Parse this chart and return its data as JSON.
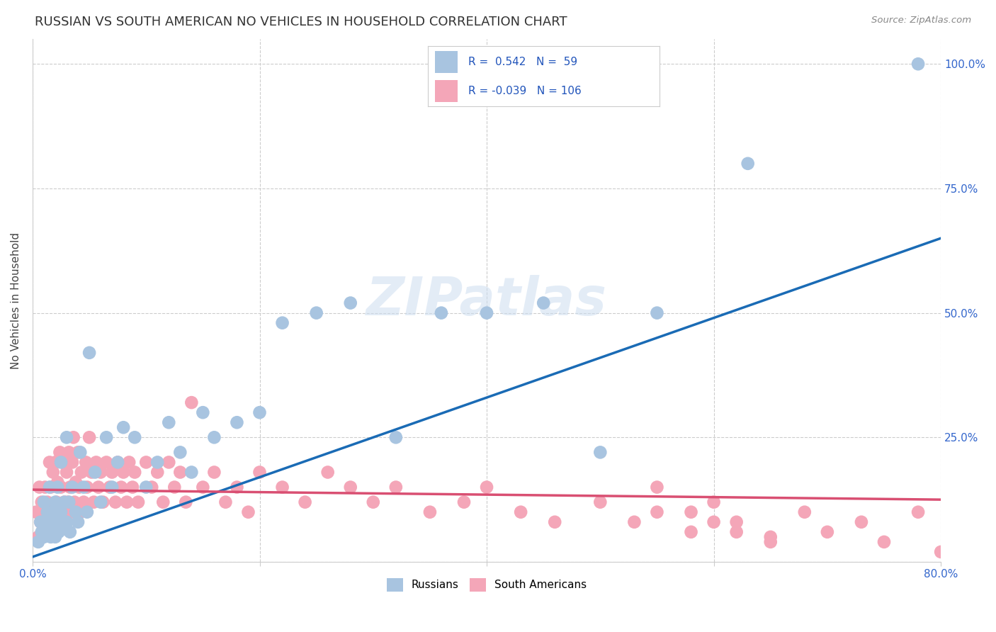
{
  "title": "RUSSIAN VS SOUTH AMERICAN NO VEHICLES IN HOUSEHOLD CORRELATION CHART",
  "source": "Source: ZipAtlas.com",
  "ylabel": "No Vehicles in Household",
  "xlim": [
    0.0,
    0.8
  ],
  "ylim": [
    0.0,
    1.05
  ],
  "xticks": [
    0.0,
    0.2,
    0.4,
    0.6,
    0.8
  ],
  "xticklabels": [
    "0.0%",
    "",
    "",
    "",
    "80.0%"
  ],
  "ytick_positions": [
    0.0,
    0.25,
    0.5,
    0.75,
    1.0
  ],
  "ytick_labels": [
    "",
    "25.0%",
    "50.0%",
    "75.0%",
    "100.0%"
  ],
  "russian_color": "#a8c4e0",
  "south_american_color": "#f4a6b8",
  "russian_line_color": "#1a6bb5",
  "south_american_line_color": "#d94f72",
  "background_color": "#ffffff",
  "grid_color": "#cccccc",
  "watermark": "ZIPatlas",
  "legend_r_russian": "0.542",
  "legend_n_russian": "59",
  "legend_r_sa": "-0.039",
  "legend_n_sa": "106",
  "title_fontsize": 13,
  "axis_fontsize": 11,
  "tick_fontsize": 11,
  "russian_line_x0": 0.0,
  "russian_line_y0": 0.01,
  "russian_line_x1": 0.8,
  "russian_line_y1": 0.65,
  "sa_line_x0": 0.0,
  "sa_line_y0": 0.145,
  "sa_line_x1": 0.8,
  "sa_line_y1": 0.125,
  "russian_x": [
    0.005,
    0.007,
    0.008,
    0.01,
    0.01,
    0.012,
    0.013,
    0.015,
    0.015,
    0.016,
    0.017,
    0.018,
    0.02,
    0.02,
    0.021,
    0.022,
    0.023,
    0.025,
    0.025,
    0.027,
    0.028,
    0.03,
    0.03,
    0.032,
    0.033,
    0.035,
    0.038,
    0.04,
    0.042,
    0.045,
    0.048,
    0.05,
    0.055,
    0.06,
    0.065,
    0.07,
    0.075,
    0.08,
    0.09,
    0.1,
    0.11,
    0.12,
    0.13,
    0.14,
    0.15,
    0.16,
    0.18,
    0.2,
    0.22,
    0.25,
    0.28,
    0.32,
    0.36,
    0.4,
    0.45,
    0.5,
    0.55,
    0.63,
    0.78
  ],
  "russian_y": [
    0.04,
    0.08,
    0.06,
    0.05,
    0.12,
    0.07,
    0.1,
    0.08,
    0.15,
    0.05,
    0.1,
    0.06,
    0.05,
    0.12,
    0.08,
    0.15,
    0.06,
    0.1,
    0.2,
    0.07,
    0.12,
    0.08,
    0.25,
    0.12,
    0.06,
    0.15,
    0.1,
    0.08,
    0.22,
    0.15,
    0.1,
    0.42,
    0.18,
    0.12,
    0.25,
    0.15,
    0.2,
    0.27,
    0.25,
    0.15,
    0.2,
    0.28,
    0.22,
    0.18,
    0.3,
    0.25,
    0.28,
    0.3,
    0.48,
    0.5,
    0.52,
    0.25,
    0.5,
    0.5,
    0.52,
    0.22,
    0.5,
    0.8,
    1.0
  ],
  "sa_x": [
    0.003,
    0.005,
    0.006,
    0.007,
    0.008,
    0.009,
    0.01,
    0.011,
    0.012,
    0.013,
    0.014,
    0.015,
    0.015,
    0.016,
    0.017,
    0.018,
    0.019,
    0.02,
    0.021,
    0.022,
    0.023,
    0.024,
    0.025,
    0.026,
    0.027,
    0.028,
    0.029,
    0.03,
    0.031,
    0.032,
    0.033,
    0.034,
    0.035,
    0.036,
    0.037,
    0.038,
    0.04,
    0.041,
    0.042,
    0.043,
    0.045,
    0.047,
    0.048,
    0.05,
    0.052,
    0.054,
    0.056,
    0.058,
    0.06,
    0.062,
    0.065,
    0.068,
    0.07,
    0.073,
    0.075,
    0.078,
    0.08,
    0.083,
    0.085,
    0.088,
    0.09,
    0.093,
    0.1,
    0.105,
    0.11,
    0.115,
    0.12,
    0.125,
    0.13,
    0.135,
    0.14,
    0.15,
    0.16,
    0.17,
    0.18,
    0.19,
    0.2,
    0.22,
    0.24,
    0.26,
    0.28,
    0.3,
    0.32,
    0.35,
    0.38,
    0.4,
    0.43,
    0.46,
    0.5,
    0.53,
    0.55,
    0.58,
    0.6,
    0.62,
    0.65,
    0.68,
    0.7,
    0.73,
    0.75,
    0.78,
    0.8,
    0.55,
    0.58,
    0.6,
    0.62,
    0.65
  ],
  "sa_y": [
    0.1,
    0.05,
    0.15,
    0.08,
    0.12,
    0.06,
    0.1,
    0.15,
    0.08,
    0.12,
    0.06,
    0.2,
    0.1,
    0.15,
    0.08,
    0.18,
    0.06,
    0.2,
    0.12,
    0.16,
    0.08,
    0.22,
    0.15,
    0.1,
    0.2,
    0.12,
    0.08,
    0.18,
    0.12,
    0.22,
    0.15,
    0.1,
    0.2,
    0.25,
    0.12,
    0.16,
    0.22,
    0.15,
    0.1,
    0.18,
    0.12,
    0.2,
    0.15,
    0.25,
    0.18,
    0.12,
    0.2,
    0.15,
    0.18,
    0.12,
    0.2,
    0.15,
    0.18,
    0.12,
    0.2,
    0.15,
    0.18,
    0.12,
    0.2,
    0.15,
    0.18,
    0.12,
    0.2,
    0.15,
    0.18,
    0.12,
    0.2,
    0.15,
    0.18,
    0.12,
    0.32,
    0.15,
    0.18,
    0.12,
    0.15,
    0.1,
    0.18,
    0.15,
    0.12,
    0.18,
    0.15,
    0.12,
    0.15,
    0.1,
    0.12,
    0.15,
    0.1,
    0.08,
    0.12,
    0.08,
    0.1,
    0.06,
    0.12,
    0.08,
    0.05,
    0.1,
    0.06,
    0.08,
    0.04,
    0.1,
    0.02,
    0.15,
    0.1,
    0.08,
    0.06,
    0.04
  ]
}
